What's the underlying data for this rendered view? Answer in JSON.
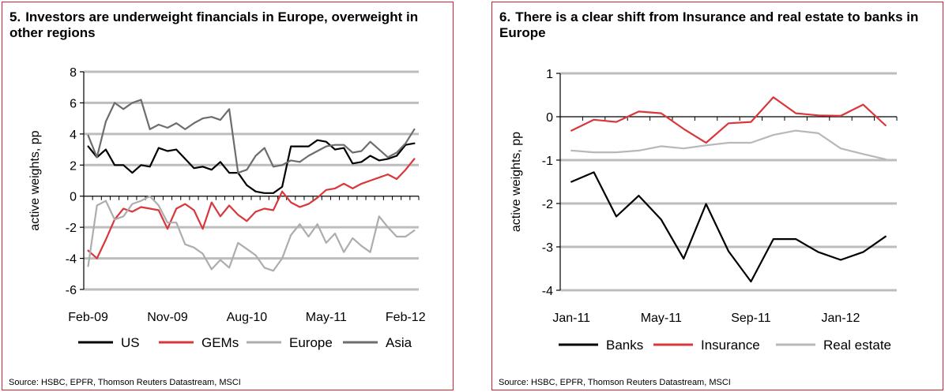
{
  "charts": [
    {
      "number": "5.",
      "title": "Investors are underweight financials in Europe, overweight in other regions",
      "source": "Source: HSBC, EPFR, Thomson Reuters Datastream, MSCI",
      "chart_data": {
        "type": "line",
        "ylabel": "active weights, pp",
        "xlabel": "",
        "ylim": [
          -6,
          8
        ],
        "yticks": [
          -6,
          -4,
          -2,
          0,
          2,
          4,
          6,
          8
        ],
        "xtick_labels": [
          "Feb-09",
          "Nov-09",
          "Aug-10",
          "May-11",
          "Feb-12"
        ],
        "xtick_index": [
          0,
          9,
          18,
          27,
          36
        ],
        "n_points": 38,
        "grid": true,
        "legend_position": "bottom",
        "series": [
          {
            "name": "US",
            "color": "#000000",
            "width": 2.2,
            "values": [
              3.2,
              2.5,
              3.0,
              2.0,
              2.0,
              1.5,
              2.0,
              1.9,
              3.1,
              2.9,
              3.0,
              2.4,
              1.8,
              1.9,
              1.7,
              2.2,
              1.5,
              1.5,
              0.7,
              0.3,
              0.2,
              0.2,
              0.6,
              3.2,
              3.2,
              3.2,
              3.6,
              3.5,
              3.0,
              3.1,
              2.1,
              2.2,
              2.6,
              2.3,
              2.4,
              2.6,
              3.3,
              3.4
            ]
          },
          {
            "name": "GEMs",
            "color": "#d9373b",
            "width": 2.2,
            "values": [
              -3.5,
              -4.0,
              -2.8,
              -1.5,
              -0.8,
              -1.0,
              -0.7,
              -0.8,
              -0.9,
              -2.1,
              -0.8,
              -0.5,
              -0.9,
              -2.1,
              -0.4,
              -1.3,
              -0.6,
              -1.2,
              -1.6,
              -1.0,
              -0.8,
              -0.9,
              0.3,
              -0.4,
              -0.7,
              -0.5,
              -0.1,
              0.4,
              0.5,
              0.8,
              0.5,
              0.8,
              1.0,
              1.2,
              1.4,
              1.1,
              1.7,
              2.4
            ]
          },
          {
            "name": "Europe",
            "color": "#adadad",
            "width": 2.2,
            "values": [
              -4.5,
              -0.6,
              -0.3,
              -1.5,
              -1.3,
              -0.5,
              -0.3,
              0.0,
              -0.6,
              -1.7,
              -1.7,
              -3.1,
              -3.3,
              -3.7,
              -4.7,
              -4.1,
              -4.6,
              -3.0,
              -3.4,
              -3.8,
              -4.6,
              -4.8,
              -4.0,
              -2.5,
              -1.8,
              -2.6,
              -1.8,
              -3.0,
              -2.4,
              -3.6,
              -2.7,
              -3.2,
              -3.6,
              -1.3,
              -2.0,
              -2.6,
              -2.6,
              -2.2
            ]
          },
          {
            "name": "Asia",
            "color": "#6d6d6d",
            "width": 2.2,
            "values": [
              3.9,
              2.5,
              4.8,
              6.0,
              5.6,
              6.0,
              6.2,
              4.3,
              4.6,
              4.4,
              4.7,
              4.3,
              4.7,
              5.0,
              5.1,
              4.9,
              5.6,
              1.5,
              1.7,
              2.6,
              3.1,
              1.9,
              2.0,
              2.3,
              2.2,
              2.6,
              2.9,
              3.2,
              3.3,
              3.3,
              2.8,
              2.9,
              3.5,
              3.0,
              2.5,
              2.8,
              3.4,
              4.3
            ]
          }
        ]
      }
    },
    {
      "number": "6.",
      "title": "There is a clear shift from Insurance and real estate to banks in Europe",
      "source": "Source: HSBC, EPFR, Thomson Reuters Datastream, MSCI",
      "chart_data": {
        "type": "line",
        "ylabel": "active weights, pp",
        "xlabel": "",
        "ylim": [
          -4,
          1
        ],
        "yticks": [
          -4,
          -3,
          -2,
          -1,
          0,
          1
        ],
        "xtick_labels": [
          "Jan-11",
          "May-11",
          "Sep-11",
          "Jan-12"
        ],
        "xtick_index": [
          0,
          4,
          8,
          12
        ],
        "n_points": 15,
        "grid": true,
        "legend_position": "bottom",
        "series": [
          {
            "name": "Banks",
            "color": "#000000",
            "width": 2.2,
            "values": [
              -1.5,
              -1.28,
              -2.3,
              -1.82,
              -2.37,
              -3.27,
              -2.01,
              -3.1,
              -3.8,
              -2.82,
              -2.82,
              -3.12,
              -3.3,
              -3.12,
              -2.76
            ]
          },
          {
            "name": "Insurance",
            "color": "#d9373b",
            "width": 2.2,
            "values": [
              -0.32,
              -0.07,
              -0.12,
              0.12,
              0.08,
              -0.28,
              -0.6,
              -0.15,
              -0.12,
              0.45,
              0.08,
              0.03,
              0.02,
              0.28,
              -0.2
            ]
          },
          {
            "name": "Real estate",
            "color": "#b8b8b8",
            "width": 2.2,
            "values": [
              -0.78,
              -0.82,
              -0.82,
              -0.78,
              -0.68,
              -0.73,
              -0.66,
              -0.6,
              -0.6,
              -0.42,
              -0.32,
              -0.38,
              -0.73,
              -0.86,
              -0.98
            ]
          }
        ]
      }
    }
  ]
}
